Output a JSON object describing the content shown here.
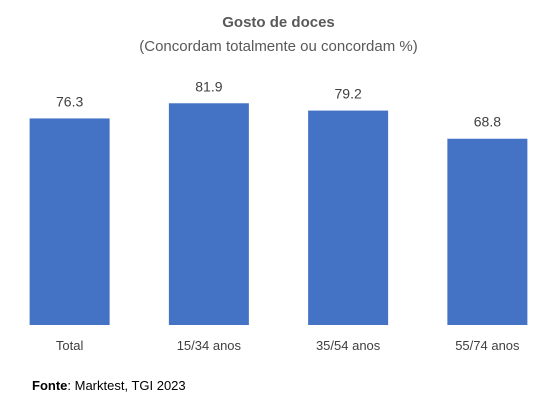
{
  "chart_data": {
    "type": "bar",
    "title": "Gosto de doces",
    "subtitle": "(Concordam totalmente ou concordam %)",
    "categories": [
      "Total",
      "15/34 anos",
      "35/54 anos",
      "55/74 anos"
    ],
    "values": [
      76.3,
      81.9,
      79.2,
      68.8
    ],
    "value_labels": [
      "76.3",
      "81.9",
      "79.2",
      "68.8"
    ],
    "ylim": [
      0,
      82
    ],
    "grid": false,
    "bar_color": "#4472C4"
  },
  "source": {
    "label": "Fonte",
    "text": ": Marktest, TGI 2023"
  }
}
